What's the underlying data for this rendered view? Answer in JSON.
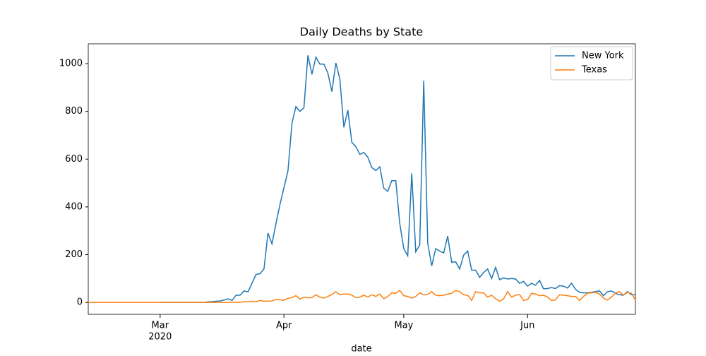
{
  "chart_data": {
    "type": "line",
    "title": "Daily Deaths by State",
    "x_label": "date",
    "year_label": "2020",
    "x": [
      43,
      44,
      45,
      46,
      47,
      48,
      49,
      50,
      51,
      52,
      53,
      54,
      55,
      56,
      57,
      58,
      59,
      60,
      61,
      62,
      63,
      64,
      65,
      66,
      67,
      68,
      69,
      70,
      71,
      72,
      73,
      74,
      75,
      76,
      77,
      78,
      79,
      80,
      81,
      82,
      83,
      84,
      85,
      86,
      87,
      88,
      89,
      90,
      91,
      92,
      93,
      94,
      95,
      96,
      97,
      98,
      99,
      100,
      101,
      102,
      103,
      104,
      105,
      106,
      107,
      108,
      109,
      110,
      111,
      112,
      113,
      114,
      115,
      116,
      117,
      118,
      119,
      120,
      121,
      122,
      123,
      124,
      125,
      126,
      127,
      128,
      129,
      130,
      131,
      132,
      133,
      134,
      135,
      136,
      137,
      138,
      139,
      140,
      141,
      142,
      143,
      144,
      145,
      146,
      147,
      148,
      149,
      150,
      151,
      152,
      153,
      154,
      155,
      156,
      157,
      158,
      159,
      160,
      161,
      162,
      163,
      164,
      165,
      166,
      167,
      168,
      169,
      170,
      171,
      172,
      173,
      174,
      175,
      176,
      177,
      178,
      179,
      180
    ],
    "series": [
      {
        "name": "New York",
        "color": "#1f77b4",
        "values": [
          null,
          null,
          null,
          null,
          null,
          null,
          null,
          null,
          null,
          null,
          null,
          null,
          null,
          null,
          null,
          null,
          null,
          null,
          0,
          0,
          0,
          0,
          0,
          0,
          0,
          0,
          0,
          0,
          0,
          0,
          2,
          3,
          5,
          6,
          10,
          15,
          8,
          30,
          30,
          48,
          44,
          80,
          117,
          120,
          140,
          290,
          245,
          330,
          410,
          480,
          550,
          750,
          820,
          800,
          815,
          1035,
          955,
          1027,
          998,
          998,
          960,
          883,
          1003,
          935,
          733,
          805,
          670,
          652,
          620,
          628,
          608,
          565,
          552,
          568,
          478,
          465,
          510,
          510,
          330,
          225,
          195,
          540,
          212,
          240,
          928,
          248,
          153,
          225,
          215,
          207,
          278,
          168,
          170,
          140,
          198,
          215,
          135,
          135,
          105,
          125,
          140,
          100,
          147,
          95,
          103,
          98,
          100,
          98,
          80,
          88,
          68,
          80,
          72,
          92,
          57,
          58,
          62,
          58,
          70,
          68,
          60,
          80,
          55,
          42,
          40,
          40,
          42,
          45,
          48,
          28,
          45,
          48,
          38,
          32,
          30,
          45,
          32,
          32
        ]
      },
      {
        "name": "Texas",
        "color": "#ff7f0e",
        "values": [
          0,
          0,
          0,
          0,
          0,
          0,
          0,
          0,
          0,
          0,
          0,
          0,
          0,
          0,
          0,
          0,
          0,
          0,
          0,
          0,
          0,
          0,
          0,
          0,
          0,
          0,
          0,
          0,
          0,
          0,
          0,
          0,
          0,
          0,
          0,
          0,
          0,
          1,
          0,
          3,
          2,
          5,
          3,
          8,
          5,
          5,
          6,
          12,
          11,
          9,
          17,
          20,
          28,
          14,
          22,
          19,
          20,
          32,
          22,
          18,
          25,
          33,
          45,
          32,
          35,
          35,
          30,
          20,
          22,
          30,
          22,
          32,
          25,
          35,
          15,
          25,
          40,
          38,
          50,
          28,
          25,
          18,
          25,
          40,
          32,
          33,
          45,
          30,
          28,
          30,
          35,
          38,
          50,
          45,
          32,
          30,
          8,
          45,
          40,
          40,
          22,
          30,
          15,
          5,
          15,
          45,
          22,
          30,
          33,
          8,
          12,
          38,
          35,
          28,
          30,
          22,
          8,
          10,
          32,
          30,
          28,
          25,
          25,
          8,
          25,
          38,
          40,
          42,
          35,
          18,
          10,
          22,
          38,
          45,
          30,
          42,
          38,
          10
        ]
      }
    ],
    "xlim": [
      43,
      180
    ],
    "ylim": [
      -50,
      1083
    ],
    "xticks": [
      {
        "value": 61,
        "label": "Mar"
      },
      {
        "value": 92,
        "label": "Apr"
      },
      {
        "value": 122,
        "label": "May"
      },
      {
        "value": 153,
        "label": "Jun"
      }
    ],
    "yticks": [
      0,
      200,
      400,
      600,
      800,
      1000
    ],
    "grid": false,
    "legend": "upper right"
  }
}
